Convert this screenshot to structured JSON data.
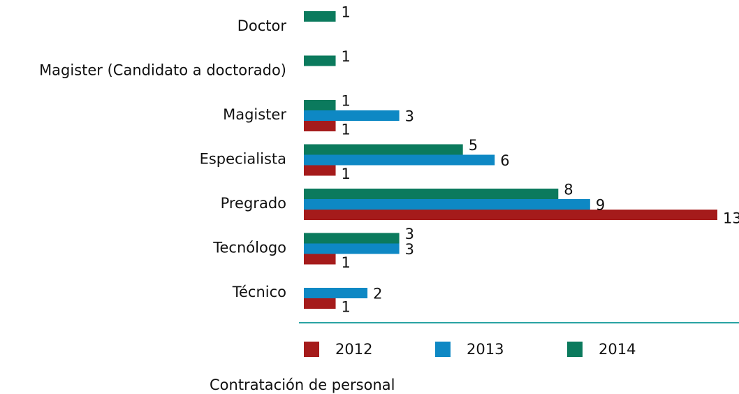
{
  "chart_data": {
    "type": "hbar",
    "title": "Contratación de personal",
    "categories": [
      "Doctor",
      "Magister (Candidato a doctorado)",
      "Magister",
      "Especialista",
      "Pregrado",
      "Tecnólogo",
      "Técnico"
    ],
    "series": [
      {
        "name": "2012",
        "color": "#a51b1b",
        "values": [
          null,
          null,
          1,
          1,
          13,
          1,
          1
        ]
      },
      {
        "name": "2013",
        "color": "#0e88c4",
        "values": [
          null,
          null,
          3,
          6,
          9,
          3,
          2
        ]
      },
      {
        "name": "2014",
        "color": "#0b7a5d",
        "values": [
          1,
          1,
          1,
          5,
          8,
          3,
          null
        ]
      }
    ]
  }
}
